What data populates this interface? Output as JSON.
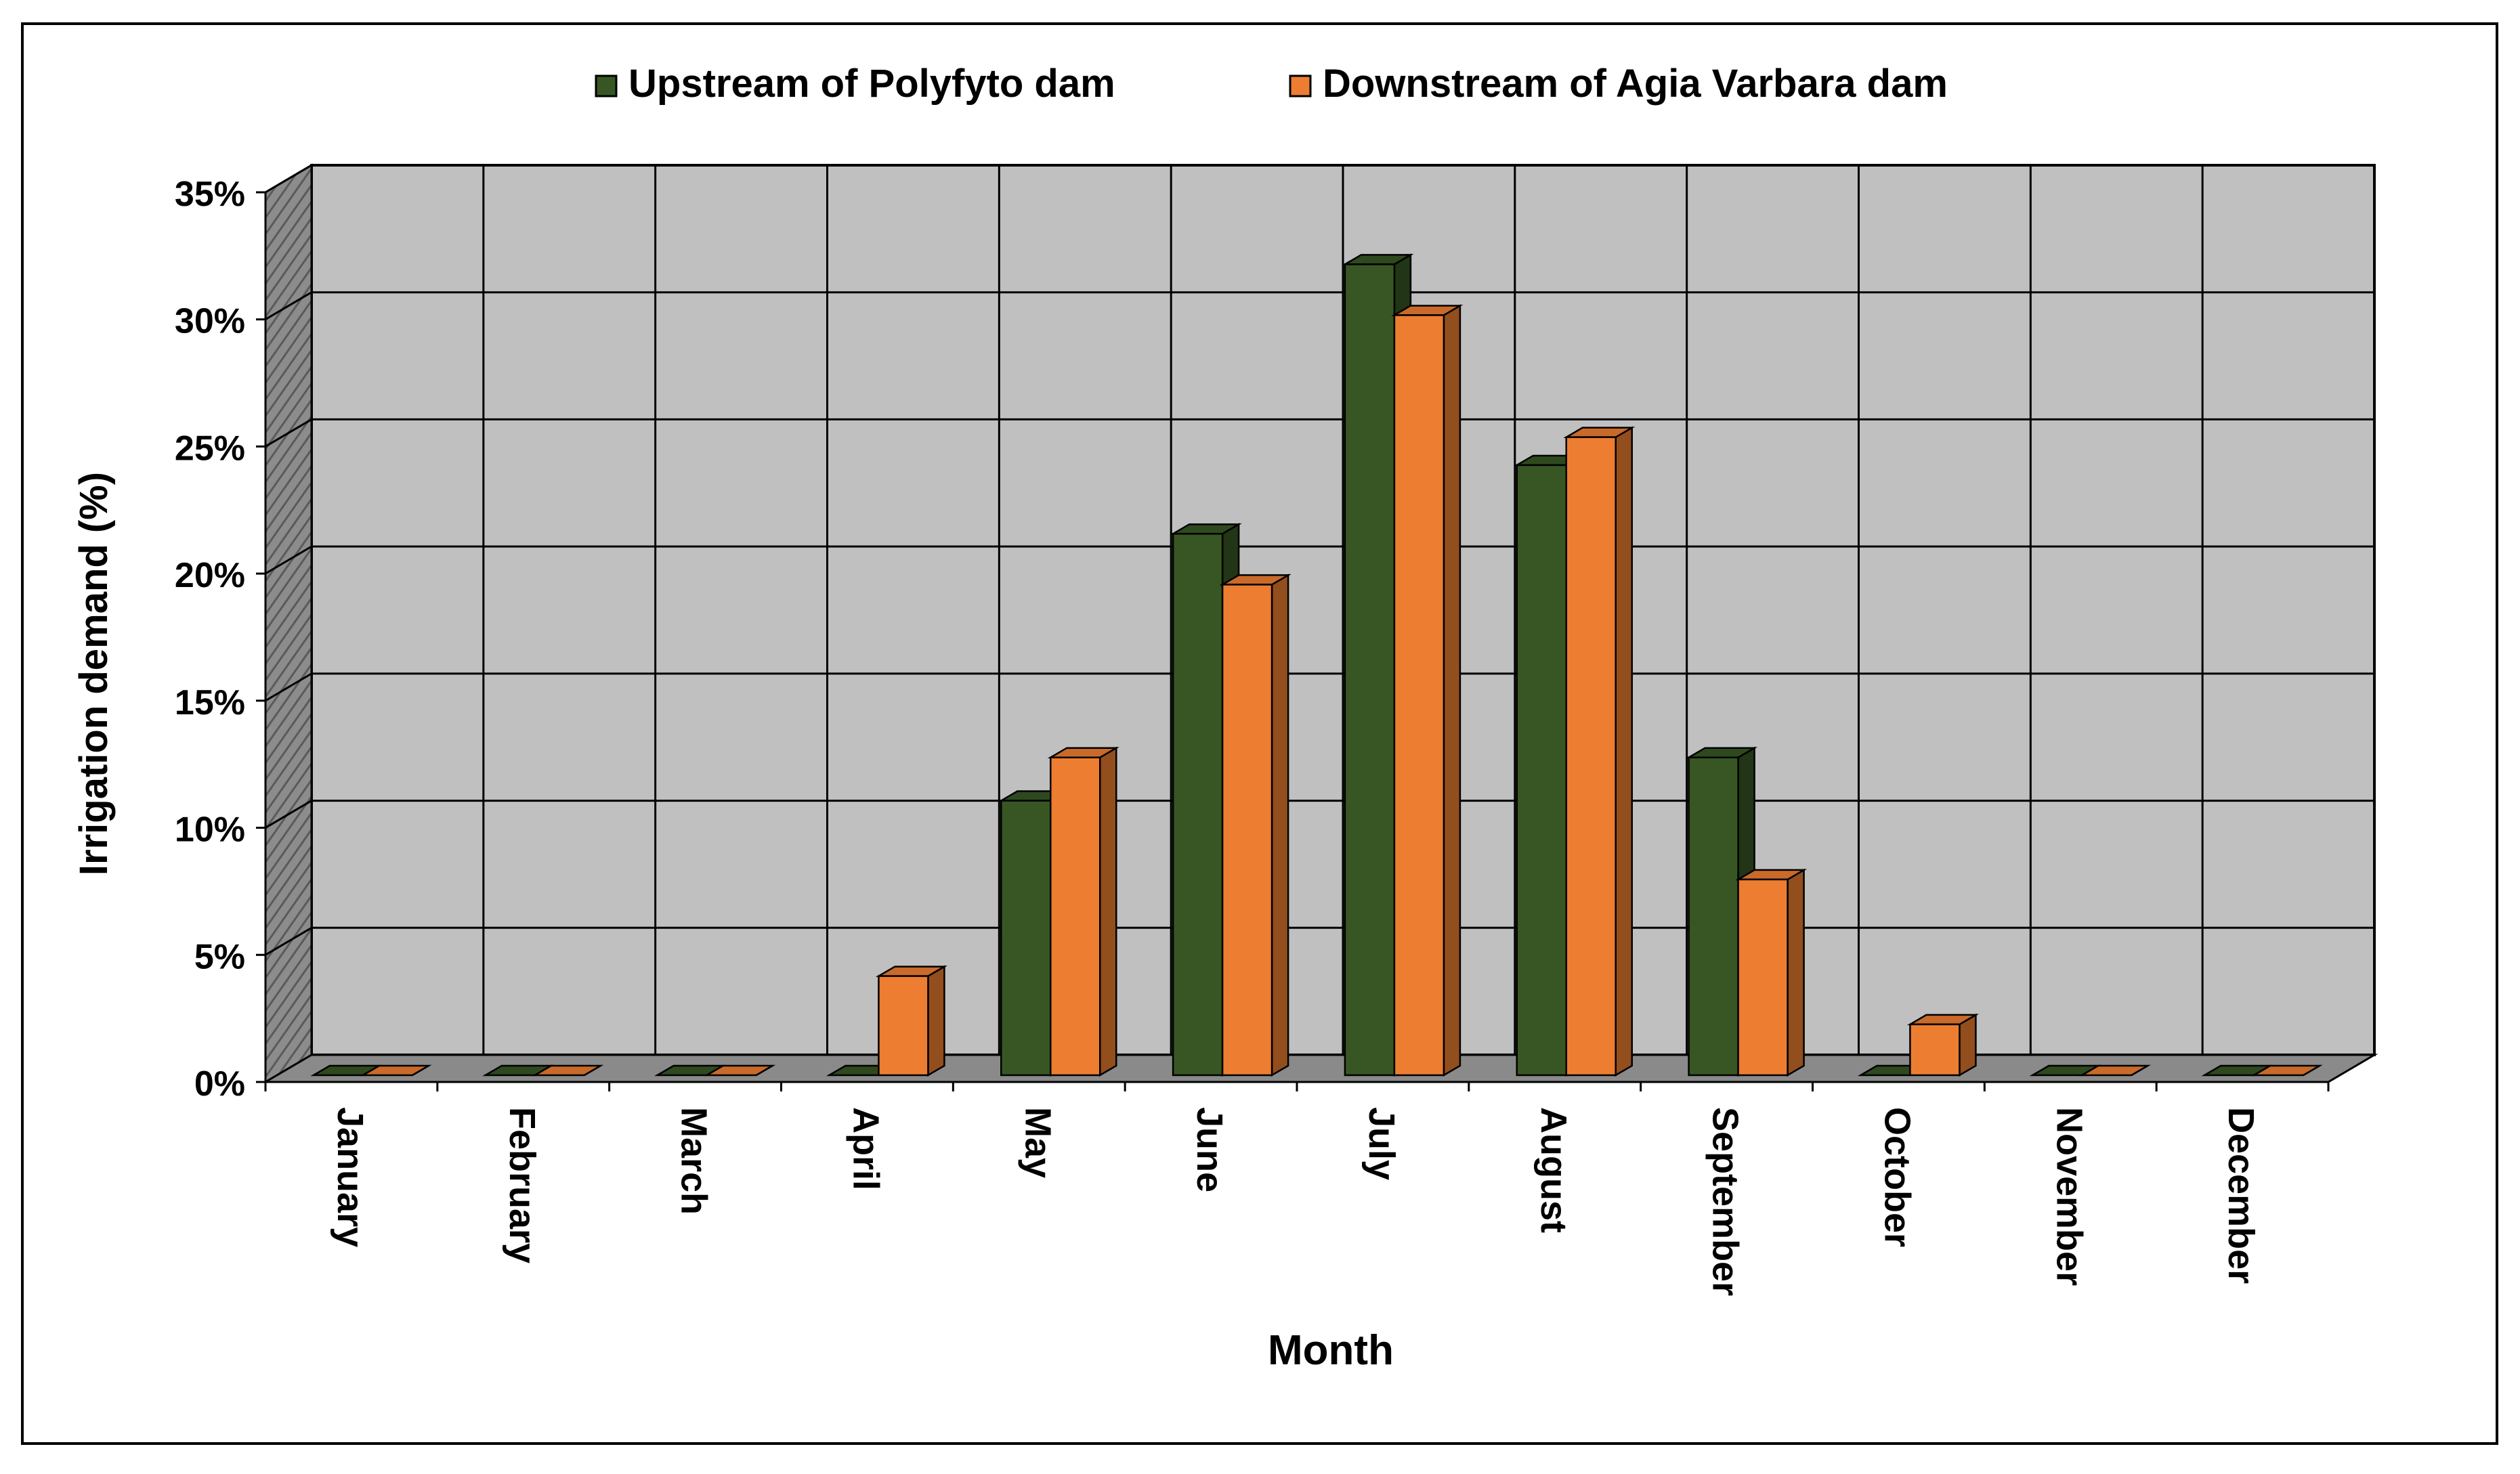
{
  "chart_data": {
    "type": "bar",
    "title": "",
    "xlabel": "Month",
    "ylabel": "Irrigation demand (%)",
    "categories": [
      "January",
      "February",
      "March",
      "April",
      "May",
      "June",
      "July",
      "August",
      "September",
      "October",
      "November",
      "December"
    ],
    "series": [
      {
        "name": "Upstream of Polyfyto dam",
        "color": "#375623",
        "values": [
          0,
          0,
          0,
          0,
          10.8,
          21.3,
          31.9,
          24.0,
          12.5,
          0,
          0,
          0
        ]
      },
      {
        "name": "Downstream of Agia Varbara dam",
        "color": "#ED7D31",
        "values": [
          0,
          0,
          0,
          3.9,
          12.5,
          19.3,
          29.9,
          25.1,
          7.7,
          2.0,
          0,
          0
        ]
      }
    ],
    "y_ticks": [
      "0%",
      "5%",
      "10%",
      "15%",
      "20%",
      "25%",
      "30%",
      "35%"
    ],
    "ylim": [
      0,
      35
    ],
    "grid": true,
    "legend_position": "top-center",
    "style": "3d-clustered-column"
  }
}
